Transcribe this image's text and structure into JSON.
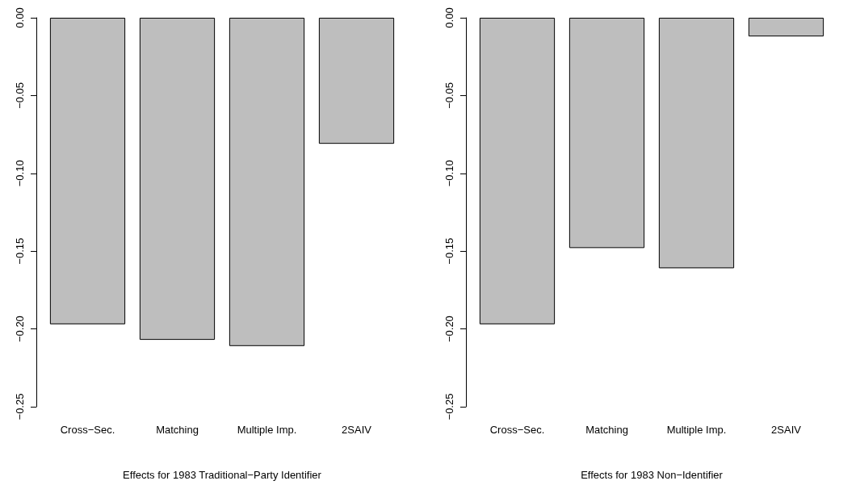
{
  "chart_data": [
    {
      "type": "bar",
      "xlabel": "Effects for 1983 Traditional−Party Identifier",
      "categories": [
        "Cross−Sec.",
        "Matching",
        "Multiple Imp.",
        "2SAIV"
      ],
      "values": [
        -0.197,
        -0.207,
        -0.211,
        -0.081
      ],
      "color": "#bebebe",
      "ylim": [
        -0.25,
        0
      ],
      "yticks": [
        {
          "value": -0.25,
          "label": "−0.25"
        },
        {
          "value": -0.2,
          "label": "−0.20"
        },
        {
          "value": -0.15,
          "label": "−0.15"
        },
        {
          "value": -0.1,
          "label": "−0.10"
        },
        {
          "value": -0.05,
          "label": "−0.05"
        },
        {
          "value": 0,
          "label": "0.00"
        }
      ]
    },
    {
      "type": "bar",
      "xlabel": "Effects for 1983 Non−Identifier",
      "categories": [
        "Cross−Sec.",
        "Matching",
        "Multiple Imp.",
        "2SAIV"
      ],
      "values": [
        -0.197,
        -0.148,
        -0.161,
        -0.012
      ],
      "color": "#bebebe",
      "ylim": [
        -0.25,
        0
      ],
      "yticks": [
        {
          "value": -0.25,
          "label": "−0.25"
        },
        {
          "value": -0.2,
          "label": "−0.20"
        },
        {
          "value": -0.15,
          "label": "−0.15"
        },
        {
          "value": -0.1,
          "label": "−0.10"
        },
        {
          "value": -0.05,
          "label": "−0.05"
        },
        {
          "value": 0,
          "label": "0.00"
        }
      ]
    }
  ]
}
